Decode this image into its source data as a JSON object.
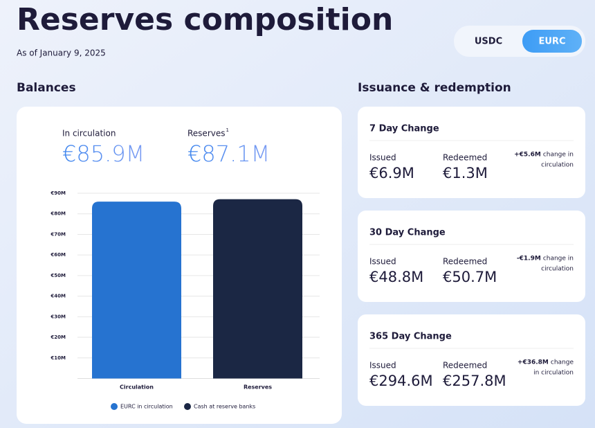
{
  "header": {
    "title": "Reserves composition",
    "subtitle": "As of January 9, 2025"
  },
  "toggle": {
    "options": [
      "USDC",
      "EURC"
    ],
    "selected_index": 1
  },
  "balances": {
    "heading": "Balances",
    "stats": [
      {
        "label": "In circulation",
        "value": "€85.9M"
      },
      {
        "label": "Reserves",
        "footnote": "1",
        "value": "€87.1M"
      }
    ]
  },
  "chart_data": {
    "type": "bar",
    "categories": [
      "Circulation",
      "Reserves"
    ],
    "values": [
      85.9,
      87.1
    ],
    "colors": [
      "#2673d0",
      "#1b2744"
    ],
    "legend": [
      "EURC in circulation",
      "Cash at reserve banks"
    ],
    "ylim": [
      0,
      90
    ],
    "yticks": [
      {
        "value": 10,
        "label": "€10M"
      },
      {
        "value": 20,
        "label": "€20M"
      },
      {
        "value": 30,
        "label": "€30M"
      },
      {
        "value": 40,
        "label": "€40M"
      },
      {
        "value": 50,
        "label": "€50M"
      },
      {
        "value": 60,
        "label": "€60M"
      },
      {
        "value": 70,
        "label": "€70M"
      },
      {
        "value": 80,
        "label": "€80M"
      },
      {
        "value": 90,
        "label": "€90M"
      }
    ],
    "grid": true
  },
  "issuance": {
    "heading": "Issuance & redemption",
    "cards": [
      {
        "title": "7 Day Change",
        "issued_label": "Issued",
        "issued": "€6.9M",
        "redeemed_label": "Redeemed",
        "redeemed": "€1.3M",
        "change": "+€5.6M",
        "change_note": [
          "change in",
          "circulation"
        ]
      },
      {
        "title": "30 Day Change",
        "issued_label": "Issued",
        "issued": "€48.8M",
        "redeemed_label": "Redeemed",
        "redeemed": "€50.7M",
        "change": "-€1.9M",
        "change_note": [
          "change in",
          "circulation"
        ]
      },
      {
        "title": "365 Day Change",
        "issued_label": "Issued",
        "issued": "€294.6M",
        "redeemed_label": "Redeemed",
        "redeemed": "€257.8M",
        "change": "+€36.8M",
        "change_note": [
          "change",
          "in circulation"
        ]
      }
    ]
  }
}
